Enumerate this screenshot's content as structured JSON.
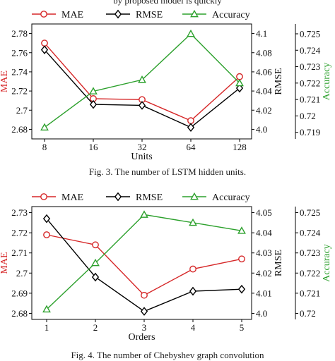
{
  "top_cut_text": "by proposed model is quickly",
  "colors": {
    "mae": "#d62728",
    "rmse": "#000000",
    "accuracy": "#2ca02c"
  },
  "chart_data": [
    {
      "type": "line",
      "caption": "Fig. 3.   The number of LSTM hidden units.",
      "xlabel": "Units",
      "categories": [
        "8",
        "16",
        "32",
        "64",
        "128"
      ],
      "legend": [
        "MAE",
        "RMSE",
        "Accuracy"
      ],
      "legend_position": "top",
      "mae_axis": {
        "label": "MAE",
        "ylim": [
          2.67,
          2.79
        ],
        "ticks": [
          "2.78",
          "2.76",
          "2.74",
          "2.72",
          "2.7",
          "2.68"
        ],
        "tick_values": [
          2.78,
          2.76,
          2.74,
          2.72,
          2.7,
          2.68
        ]
      },
      "rmse_axis": {
        "label": "RMSE",
        "ylim": [
          3.99,
          4.11
        ],
        "ticks": [
          "4.1",
          "4.08",
          "4.06",
          "4.04",
          "4.02",
          "4.0"
        ],
        "tick_values": [
          4.1,
          4.08,
          4.06,
          4.04,
          4.02,
          4.0
        ]
      },
      "acc_axis": {
        "label": "Accuracy",
        "ylim": [
          0.7186,
          0.7256
        ],
        "ticks": [
          "0.725",
          "0.724",
          "0.723",
          "0.722",
          "0.721",
          "0.72",
          "0.719"
        ],
        "tick_values": [
          0.725,
          0.724,
          0.723,
          0.722,
          0.721,
          0.72,
          0.719
        ]
      },
      "series": [
        {
          "name": "MAE",
          "axis": "mae",
          "marker": "circle",
          "values": [
            2.77,
            2.712,
            2.711,
            2.689,
            2.735
          ]
        },
        {
          "name": "RMSE",
          "axis": "rmse",
          "marker": "diamond",
          "values": [
            4.083,
            4.026,
            4.025,
            4.002,
            4.043
          ]
        },
        {
          "name": "Accuracy",
          "axis": "acc",
          "marker": "triangle",
          "values": [
            0.7193,
            0.7215,
            0.7222,
            0.725,
            0.722
          ]
        }
      ]
    },
    {
      "type": "line",
      "caption": "Fig. 4.   The number of Chebyshev graph convolution",
      "xlabel": "Orders",
      "categories": [
        "1",
        "2",
        "3",
        "4",
        "5"
      ],
      "legend": [
        "MAE",
        "RMSE",
        "Accuracy"
      ],
      "legend_position": "top",
      "mae_axis": {
        "label": "MAE",
        "ylim": [
          2.677,
          2.733
        ],
        "ticks": [
          "2.73",
          "2.72",
          "2.71",
          "2.7",
          "2.69",
          "2.68"
        ],
        "tick_values": [
          2.73,
          2.72,
          2.71,
          2.7,
          2.69,
          2.68
        ]
      },
      "rmse_axis": {
        "label": "RMSE",
        "ylim": [
          3.997,
          4.053
        ],
        "ticks": [
          "4.05",
          "4.04",
          "4.03",
          "4.02",
          "4.01",
          "4.0"
        ],
        "tick_values": [
          4.05,
          4.04,
          4.03,
          4.02,
          4.01,
          4.0
        ]
      },
      "acc_axis": {
        "label": "Accuracy",
        "ylim": [
          0.7197,
          0.7253
        ],
        "ticks": [
          "0.725",
          "0.724",
          "0.723",
          "0.722",
          "0.721",
          "0.72"
        ],
        "tick_values": [
          0.725,
          0.724,
          0.723,
          0.722,
          0.721,
          0.72
        ]
      },
      "series": [
        {
          "name": "MAE",
          "axis": "mae",
          "marker": "circle",
          "values": [
            2.719,
            2.714,
            2.689,
            2.702,
            2.707
          ]
        },
        {
          "name": "RMSE",
          "axis": "rmse",
          "marker": "diamond",
          "values": [
            4.047,
            4.018,
            4.001,
            4.011,
            4.012
          ]
        },
        {
          "name": "Accuracy",
          "axis": "acc",
          "marker": "triangle",
          "values": [
            0.7202,
            0.7225,
            0.7249,
            0.7245,
            0.7241
          ]
        }
      ]
    }
  ]
}
